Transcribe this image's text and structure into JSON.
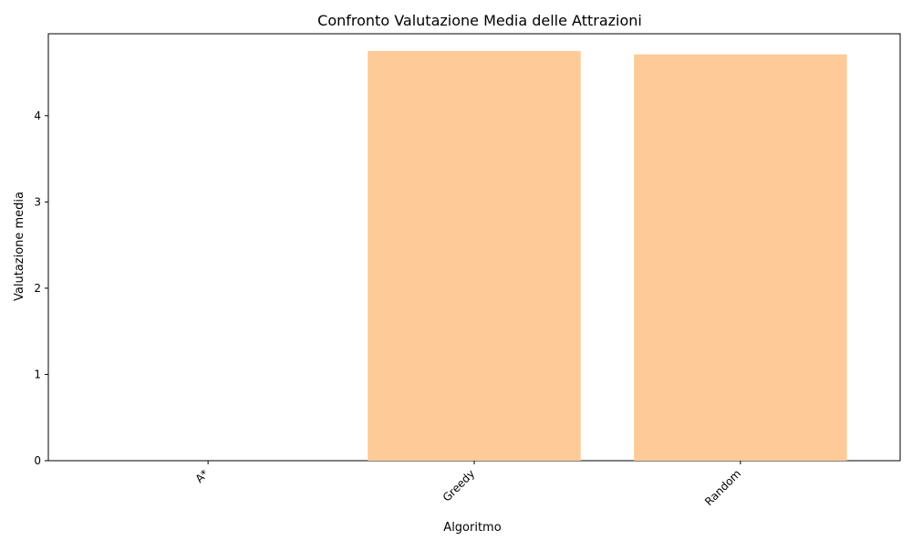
{
  "chart_data": {
    "type": "bar",
    "title": "Confronto Valutazione Media delle Attrazioni",
    "xlabel": "Algoritmo",
    "ylabel": "Valutazione media",
    "categories": [
      "A*",
      "Greedy",
      "Random"
    ],
    "values": [
      0,
      4.75,
      4.71
    ],
    "ylim": [
      0,
      4.95
    ],
    "yticks": [
      0,
      1,
      2,
      3,
      4
    ],
    "grid": false,
    "bar_color": "#fdca98",
    "xtick_rotation": "45°"
  }
}
